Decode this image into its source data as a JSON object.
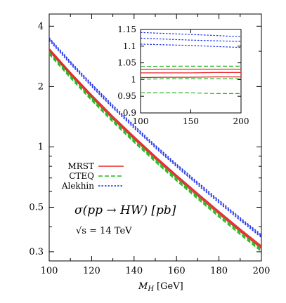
{
  "chart_data": [
    {
      "type": "line",
      "title": "",
      "xlabel": "M_H [GeV]",
      "xlabel_text": "M",
      "xlabel_sub": "H",
      "xlabel_unit": "[GeV]",
      "ylabel": "",
      "xlim": [
        100,
        200
      ],
      "ylim": [
        0.27,
        4.6
      ],
      "yscale": "log",
      "x_ticks": [
        100,
        120,
        140,
        160,
        180,
        200
      ],
      "x_tick_labels": [
        "100",
        "120",
        "140",
        "160",
        "180",
        "200"
      ],
      "y_ticks": [
        0.3,
        0.5,
        1,
        2,
        4
      ],
      "y_tick_labels": [
        "0.3",
        "0.5",
        "1",
        "2",
        "4"
      ],
      "y_minor_ticks": [
        0.4,
        0.6,
        0.7,
        0.8,
        0.9,
        3
      ],
      "grid": false,
      "legend_position": "middle-left",
      "annotations": {
        "process": "σ(pp → HW) [pb]",
        "energy": "√s = 14 TeV"
      },
      "x": [
        100,
        110,
        120,
        130,
        140,
        150,
        160,
        170,
        180,
        190,
        200
      ],
      "series": [
        {
          "name": "MRST",
          "color": "#e8262b",
          "style": "solid",
          "band": true,
          "values": [
            3.05,
            2.32,
            1.79,
            1.4,
            1.11,
            0.885,
            0.713,
            0.578,
            0.47,
            0.384,
            0.316
          ]
        },
        {
          "name": "CTEQ",
          "color": "#22b622",
          "style": "dashed",
          "band": true,
          "values": [
            2.94,
            2.24,
            1.73,
            1.35,
            1.07,
            0.855,
            0.688,
            0.558,
            0.454,
            0.371,
            0.305
          ]
        },
        {
          "name": "Alekhin",
          "color": "#1a2ee8",
          "style": "dotted",
          "band": true,
          "values": [
            3.45,
            2.63,
            2.03,
            1.59,
            1.26,
            1.004,
            0.809,
            0.656,
            0.534,
            0.437,
            0.359
          ]
        }
      ]
    },
    {
      "type": "line",
      "title": "",
      "xlabel": "",
      "ylabel": "",
      "xlim": [
        100,
        200
      ],
      "ylim": [
        0.9,
        1.15
      ],
      "x_ticks": [
        100,
        150,
        200
      ],
      "x_tick_labels": [
        "100",
        "150",
        "200"
      ],
      "y_ticks": [
        0.9,
        0.95,
        1.0,
        1.05,
        1.1,
        1.15
      ],
      "y_tick_labels": [
        "0.9",
        "0.95",
        "1",
        "1.05",
        "1.1",
        "1.15"
      ],
      "grid": false,
      "x": [
        100,
        125,
        150,
        175,
        200
      ],
      "series": [
        {
          "color": "#e8262b",
          "style": "solid",
          "values": [
            1.03,
            1.031,
            1.031,
            1.031,
            1.031
          ]
        },
        {
          "color": "#e8262b",
          "style": "solid",
          "values": [
            1.02,
            1.02,
            1.02,
            1.021,
            1.021
          ]
        },
        {
          "color": "#e8262b",
          "style": "solid",
          "values": [
            1.006,
            1.007,
            1.007,
            1.008,
            1.008
          ]
        },
        {
          "color": "#22b622",
          "style": "dashed",
          "values": [
            1.039,
            1.04,
            1.04,
            1.04,
            1.04
          ]
        },
        {
          "color": "#22b622",
          "style": "dashed",
          "values": [
            1.001,
            1.002,
            1.002,
            1.002,
            1.002
          ]
        },
        {
          "color": "#22b622",
          "style": "dashed",
          "values": [
            0.96,
            0.96,
            0.96,
            0.958,
            0.958
          ]
        },
        {
          "color": "#1a2ee8",
          "style": "dotted",
          "values": [
            1.141,
            1.138,
            1.135,
            1.132,
            1.128
          ]
        },
        {
          "color": "#1a2ee8",
          "style": "dotted",
          "values": [
            1.124,
            1.121,
            1.118,
            1.116,
            1.114
          ]
        },
        {
          "color": "#1a2ee8",
          "style": "dotted",
          "values": [
            1.106,
            1.104,
            1.102,
            1.099,
            1.096
          ]
        }
      ]
    }
  ]
}
